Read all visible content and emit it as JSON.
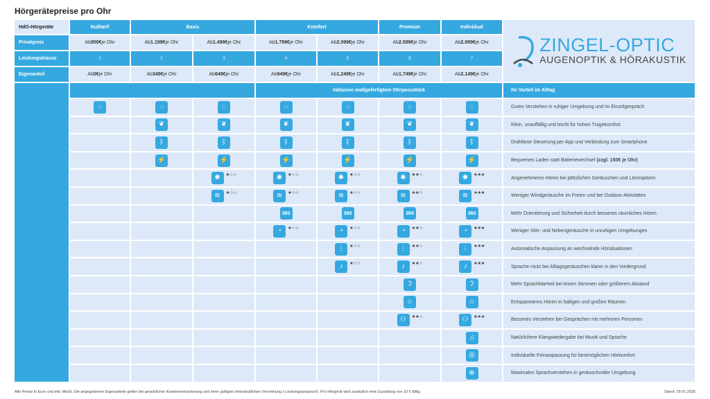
{
  "title": "Hörgerätepreise pro Ohr",
  "header": {
    "corner": "HdO-Hörgeräte",
    "groups": [
      {
        "label": "Nulltarif",
        "span": 1
      },
      {
        "label": "Basis",
        "span": 2
      },
      {
        "label": "Komfort",
        "span": 2
      },
      {
        "label": "Premium",
        "span": 1
      },
      {
        "label": "Individual",
        "span": 1
      }
    ]
  },
  "rows": {
    "privatpreis": {
      "label": "Privatpreis",
      "values": [
        "850€",
        "1.199€",
        "1.499€",
        "1.799€",
        "2.099€",
        "2.599€",
        "2.999€"
      ]
    },
    "leistungsklasse": {
      "label": "Leistungsklasse",
      "values": [
        "1",
        "2",
        "3",
        "4",
        "5",
        "6",
        "7"
      ]
    },
    "eigenanteil": {
      "label": "Eigenanteil",
      "values": [
        "0€",
        "349€",
        "649€",
        "949€",
        "1.249€",
        "1.749€",
        "2.149€"
      ]
    },
    "prefix": "Ab",
    "suffix": "je Ohr"
  },
  "inclusive_banner": "Inklusive maßgefertigtem Ohrpassstück",
  "benefits_header": "Ihr Vorteil im Alltag",
  "logo": {
    "line1": "ZINGEL-OPTIC",
    "line2": "AUGENOPTIK & HÖRAKUSTIK"
  },
  "features": [
    {
      "label": "Gutes Verstehen in ruhiger Umgebung und im Einzelgespräch",
      "icon": "speech-bubble-icon",
      "glyph": "◌",
      "cells": [
        0,
        0,
        0,
        0,
        0,
        0,
        0
      ]
    },
    {
      "label": "Klein, unauffällig und leicht für hohen Tragekomfort",
      "icon": "leaf-icon",
      "glyph": "❦",
      "cells": [
        null,
        0,
        0,
        0,
        0,
        0,
        0
      ]
    },
    {
      "label": "Drahtlose Steuerung per App und Verbindung zum Smartphone",
      "icon": "bluetooth-icon",
      "glyph": "ᛒ",
      "cells": [
        null,
        0,
        0,
        0,
        0,
        0,
        0
      ]
    },
    {
      "label": "Bequemes Laden statt Batteriewechsel",
      "bold": "(zzgl. 150€ je Ohr)",
      "icon": "battery-charging-icon",
      "glyph": "⚡",
      "cells": [
        null,
        0,
        0,
        0,
        0,
        0,
        0
      ]
    },
    {
      "label": "Angenehmeres Hören bei plötzlichen Geräuschen und Lärmspitzen",
      "icon": "noise-burst-icon",
      "glyph": "✺",
      "cells": [
        null,
        null,
        1,
        1,
        1,
        2,
        3
      ]
    },
    {
      "label": "Weniger Windgeräusche im Freien und bei Outdoor-Aktivitäten",
      "icon": "wind-icon",
      "glyph": "≋",
      "cells": [
        null,
        null,
        1,
        1,
        1,
        2,
        3
      ]
    },
    {
      "label": "Mehr Orientierung und Sicherheit durch besseres räumliches Hören",
      "icon": "360-icon",
      "glyph": "360",
      "cells": [
        null,
        null,
        null,
        0,
        0,
        0,
        0
      ]
    },
    {
      "label": "Weniger Stör- und Nebengeräusche in unruhigen Umgebungen",
      "icon": "head-sound-icon",
      "glyph": "◔",
      "cells": [
        null,
        null,
        null,
        1,
        1,
        2,
        3
      ]
    },
    {
      "label": "Automatische Anpassung an wechselnde Hörsituationen",
      "icon": "sliders-icon",
      "glyph": "⫶",
      "cells": [
        null,
        null,
        null,
        null,
        1,
        2,
        3
      ]
    },
    {
      "label": "Sprache rückt bei Alltagsgeräuschen klarer in den Vordergrund",
      "icon": "microphone-plus-icon",
      "glyph": "♪",
      "cells": [
        null,
        null,
        null,
        null,
        1,
        2,
        3
      ]
    },
    {
      "label": "Mehr Sprachklarheit bei leisen Stimmen oder größerem Abstand",
      "icon": "ear-icon",
      "glyph": "ʔ",
      "cells": [
        null,
        null,
        null,
        null,
        null,
        0,
        0
      ]
    },
    {
      "label": "Entspannteres Hören in halligen und großen Räumen",
      "icon": "room-icon",
      "glyph": "⌂",
      "cells": [
        null,
        null,
        null,
        null,
        null,
        0,
        0
      ]
    },
    {
      "label": "Besseres Verstehen bei Gesprächen mit mehreren Personen",
      "icon": "group-icon",
      "glyph": "⚇",
      "cells": [
        null,
        null,
        null,
        null,
        null,
        2,
        3
      ]
    },
    {
      "label": "Natürlichere Klangwiedergabe bei Musik und Sprache",
      "icon": "music-icon",
      "glyph": "♫",
      "cells": [
        null,
        null,
        null,
        null,
        null,
        null,
        0
      ]
    },
    {
      "label": "Individuelle Feinanpassung für bestmöglichen Hörkomfort",
      "icon": "fingerprint-icon",
      "glyph": "◎",
      "cells": [
        null,
        null,
        null,
        null,
        null,
        null,
        0
      ]
    },
    {
      "label": "Maximales Sprachverstehen in geräuschvoller Umgebung",
      "icon": "ear-plus-icon",
      "glyph": "⊕",
      "cells": [
        null,
        null,
        null,
        null,
        null,
        null,
        0
      ]
    }
  ],
  "footer": {
    "note": "Alle Preise in Euro und inkl. MwSt. Die angegebenen Eigenanteile gelten bei gesetzlicher Krankenversicherung und einer gültigen ohrenärztlichen Verordnung (-Leistungsanspruch). Pro Hörgerät wird zusätzlich eine Zuzahlung von 10 € fällig.",
    "date": "Stand: 29.01.2026"
  },
  "colors": {
    "accent": "#35a8e0",
    "cell": "#dde9f8"
  }
}
